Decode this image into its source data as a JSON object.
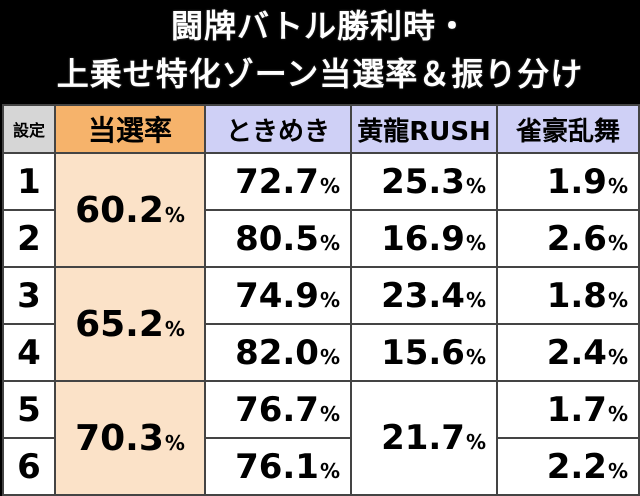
{
  "title": {
    "line1": "闘牌バトル勝利時・",
    "line2": "上乗せ特化ゾーン当選率＆振り分け"
  },
  "headers": {
    "setting": "設定",
    "rate": "当選率",
    "tokimeki": "ときめき",
    "korin": "黄龍RUSH",
    "jakugo": "雀豪乱舞"
  },
  "percent_sign": "%",
  "rows": [
    {
      "setting": "1",
      "tokimeki": "72.7",
      "korin": "25.3",
      "jakugo": "1.9"
    },
    {
      "setting": "2",
      "tokimeki": "80.5",
      "korin": "16.9",
      "jakugo": "2.6"
    },
    {
      "setting": "3",
      "tokimeki": "74.9",
      "korin": "23.4",
      "jakugo": "1.8"
    },
    {
      "setting": "4",
      "tokimeki": "82.0",
      "korin": "15.6",
      "jakugo": "2.4"
    },
    {
      "setting": "5",
      "tokimeki": "76.7",
      "korin": "21.7",
      "jakugo": "1.7"
    },
    {
      "setting": "6",
      "tokimeki": "76.1",
      "korin": "21.7",
      "jakugo": "2.2"
    }
  ],
  "rates": [
    "60.2",
    "65.2",
    "70.3"
  ]
}
